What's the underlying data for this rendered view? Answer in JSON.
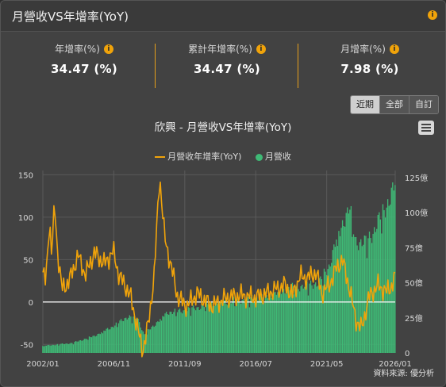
{
  "header": {
    "title": "月營收VS年增率(YoY)",
    "info_icon": "info-icon"
  },
  "stats": [
    {
      "label": "年增率(%)",
      "value": "34.47 (%)"
    },
    {
      "label": "累計年增率(%)",
      "value": "34.47 (%)"
    },
    {
      "label": "月增率(%)",
      "value": "7.98 (%)"
    }
  ],
  "range_buttons": [
    {
      "label": "近期",
      "active": true
    },
    {
      "label": "全部",
      "active": false
    },
    {
      "label": "自訂",
      "active": false
    }
  ],
  "colors": {
    "yoy_line": "#f0a30a",
    "revenue_bar": "#3fba76",
    "accent": "#e69f1b"
  },
  "chart_data": {
    "type": "bar+line",
    "title": "欣興 - 月營收VS年增率(YoY)",
    "legend": [
      "月營收年增率(YoY)",
      "月營收"
    ],
    "legend_placement": "top-center",
    "x_ticks": [
      "2002/01",
      "2006/11",
      "2011/09",
      "2016/07",
      "2021/05",
      "2026/01"
    ],
    "x_range": [
      "2002/01",
      "2026/01"
    ],
    "y_left_ticks": [
      "150",
      "100",
      "50",
      "0",
      "-50"
    ],
    "y_left_range": [
      -60,
      155
    ],
    "y_right_ticks": [
      "125億",
      "100億",
      "75億",
      "50億",
      "25億",
      "0"
    ],
    "y_right_range": [
      0,
      130
    ],
    "series": [
      {
        "name": "月營收",
        "unit": "億",
        "anchors": [
          [
            2002.0,
            5
          ],
          [
            2004.0,
            7
          ],
          [
            2005.5,
            12
          ],
          [
            2006.8,
            19
          ],
          [
            2007.8,
            26
          ],
          [
            2008.5,
            24
          ],
          [
            2008.9,
            13
          ],
          [
            2009.5,
            19
          ],
          [
            2010.5,
            29
          ],
          [
            2011.5,
            30
          ],
          [
            2012.8,
            33
          ],
          [
            2013.8,
            36
          ],
          [
            2014.8,
            37
          ],
          [
            2015.8,
            38
          ],
          [
            2016.8,
            40
          ],
          [
            2017.8,
            42
          ],
          [
            2018.8,
            46
          ],
          [
            2019.8,
            48
          ],
          [
            2020.8,
            50
          ],
          [
            2021.5,
            62
          ],
          [
            2022.0,
            80
          ],
          [
            2022.5,
            95
          ],
          [
            2022.9,
            103
          ],
          [
            2023.3,
            80
          ],
          [
            2023.9,
            78
          ],
          [
            2024.5,
            86
          ],
          [
            2025.3,
            103
          ],
          [
            2026.0,
            119
          ]
        ]
      },
      {
        "name": "月營收年增率(YoY)",
        "unit": "%",
        "anchors": [
          [
            2002.0,
            35
          ],
          [
            2002.2,
            22
          ],
          [
            2002.45,
            98
          ],
          [
            2002.6,
            55
          ],
          [
            2002.8,
            115
          ],
          [
            2003.0,
            60
          ],
          [
            2003.3,
            15
          ],
          [
            2003.8,
            25
          ],
          [
            2004.4,
            55
          ],
          [
            2004.9,
            32
          ],
          [
            2005.5,
            58
          ],
          [
            2006.2,
            45
          ],
          [
            2006.8,
            60
          ],
          [
            2007.2,
            30
          ],
          [
            2007.6,
            20
          ],
          [
            2008.0,
            5
          ],
          [
            2008.5,
            -35
          ],
          [
            2008.8,
            -58
          ],
          [
            2009.2,
            -25
          ],
          [
            2009.6,
            35
          ],
          [
            2009.95,
            150
          ],
          [
            2010.3,
            75
          ],
          [
            2010.7,
            45
          ],
          [
            2011.2,
            5
          ],
          [
            2011.8,
            -5
          ],
          [
            2012.5,
            10
          ],
          [
            2013.5,
            -5
          ],
          [
            2014.5,
            5
          ],
          [
            2015.5,
            8
          ],
          [
            2016.5,
            5
          ],
          [
            2017.5,
            12
          ],
          [
            2018.5,
            20
          ],
          [
            2019.0,
            8
          ],
          [
            2019.5,
            30
          ],
          [
            2020.0,
            28
          ],
          [
            2020.6,
            35
          ],
          [
            2021.0,
            10
          ],
          [
            2021.5,
            20
          ],
          [
            2022.0,
            40
          ],
          [
            2022.4,
            50
          ],
          [
            2022.9,
            15
          ],
          [
            2023.3,
            -20
          ],
          [
            2023.7,
            -32
          ],
          [
            2024.2,
            5
          ],
          [
            2024.8,
            20
          ],
          [
            2025.4,
            12
          ],
          [
            2025.8,
            20
          ],
          [
            2026.0,
            34.47
          ]
        ]
      }
    ]
  },
  "source": "資料來源: 優分析"
}
